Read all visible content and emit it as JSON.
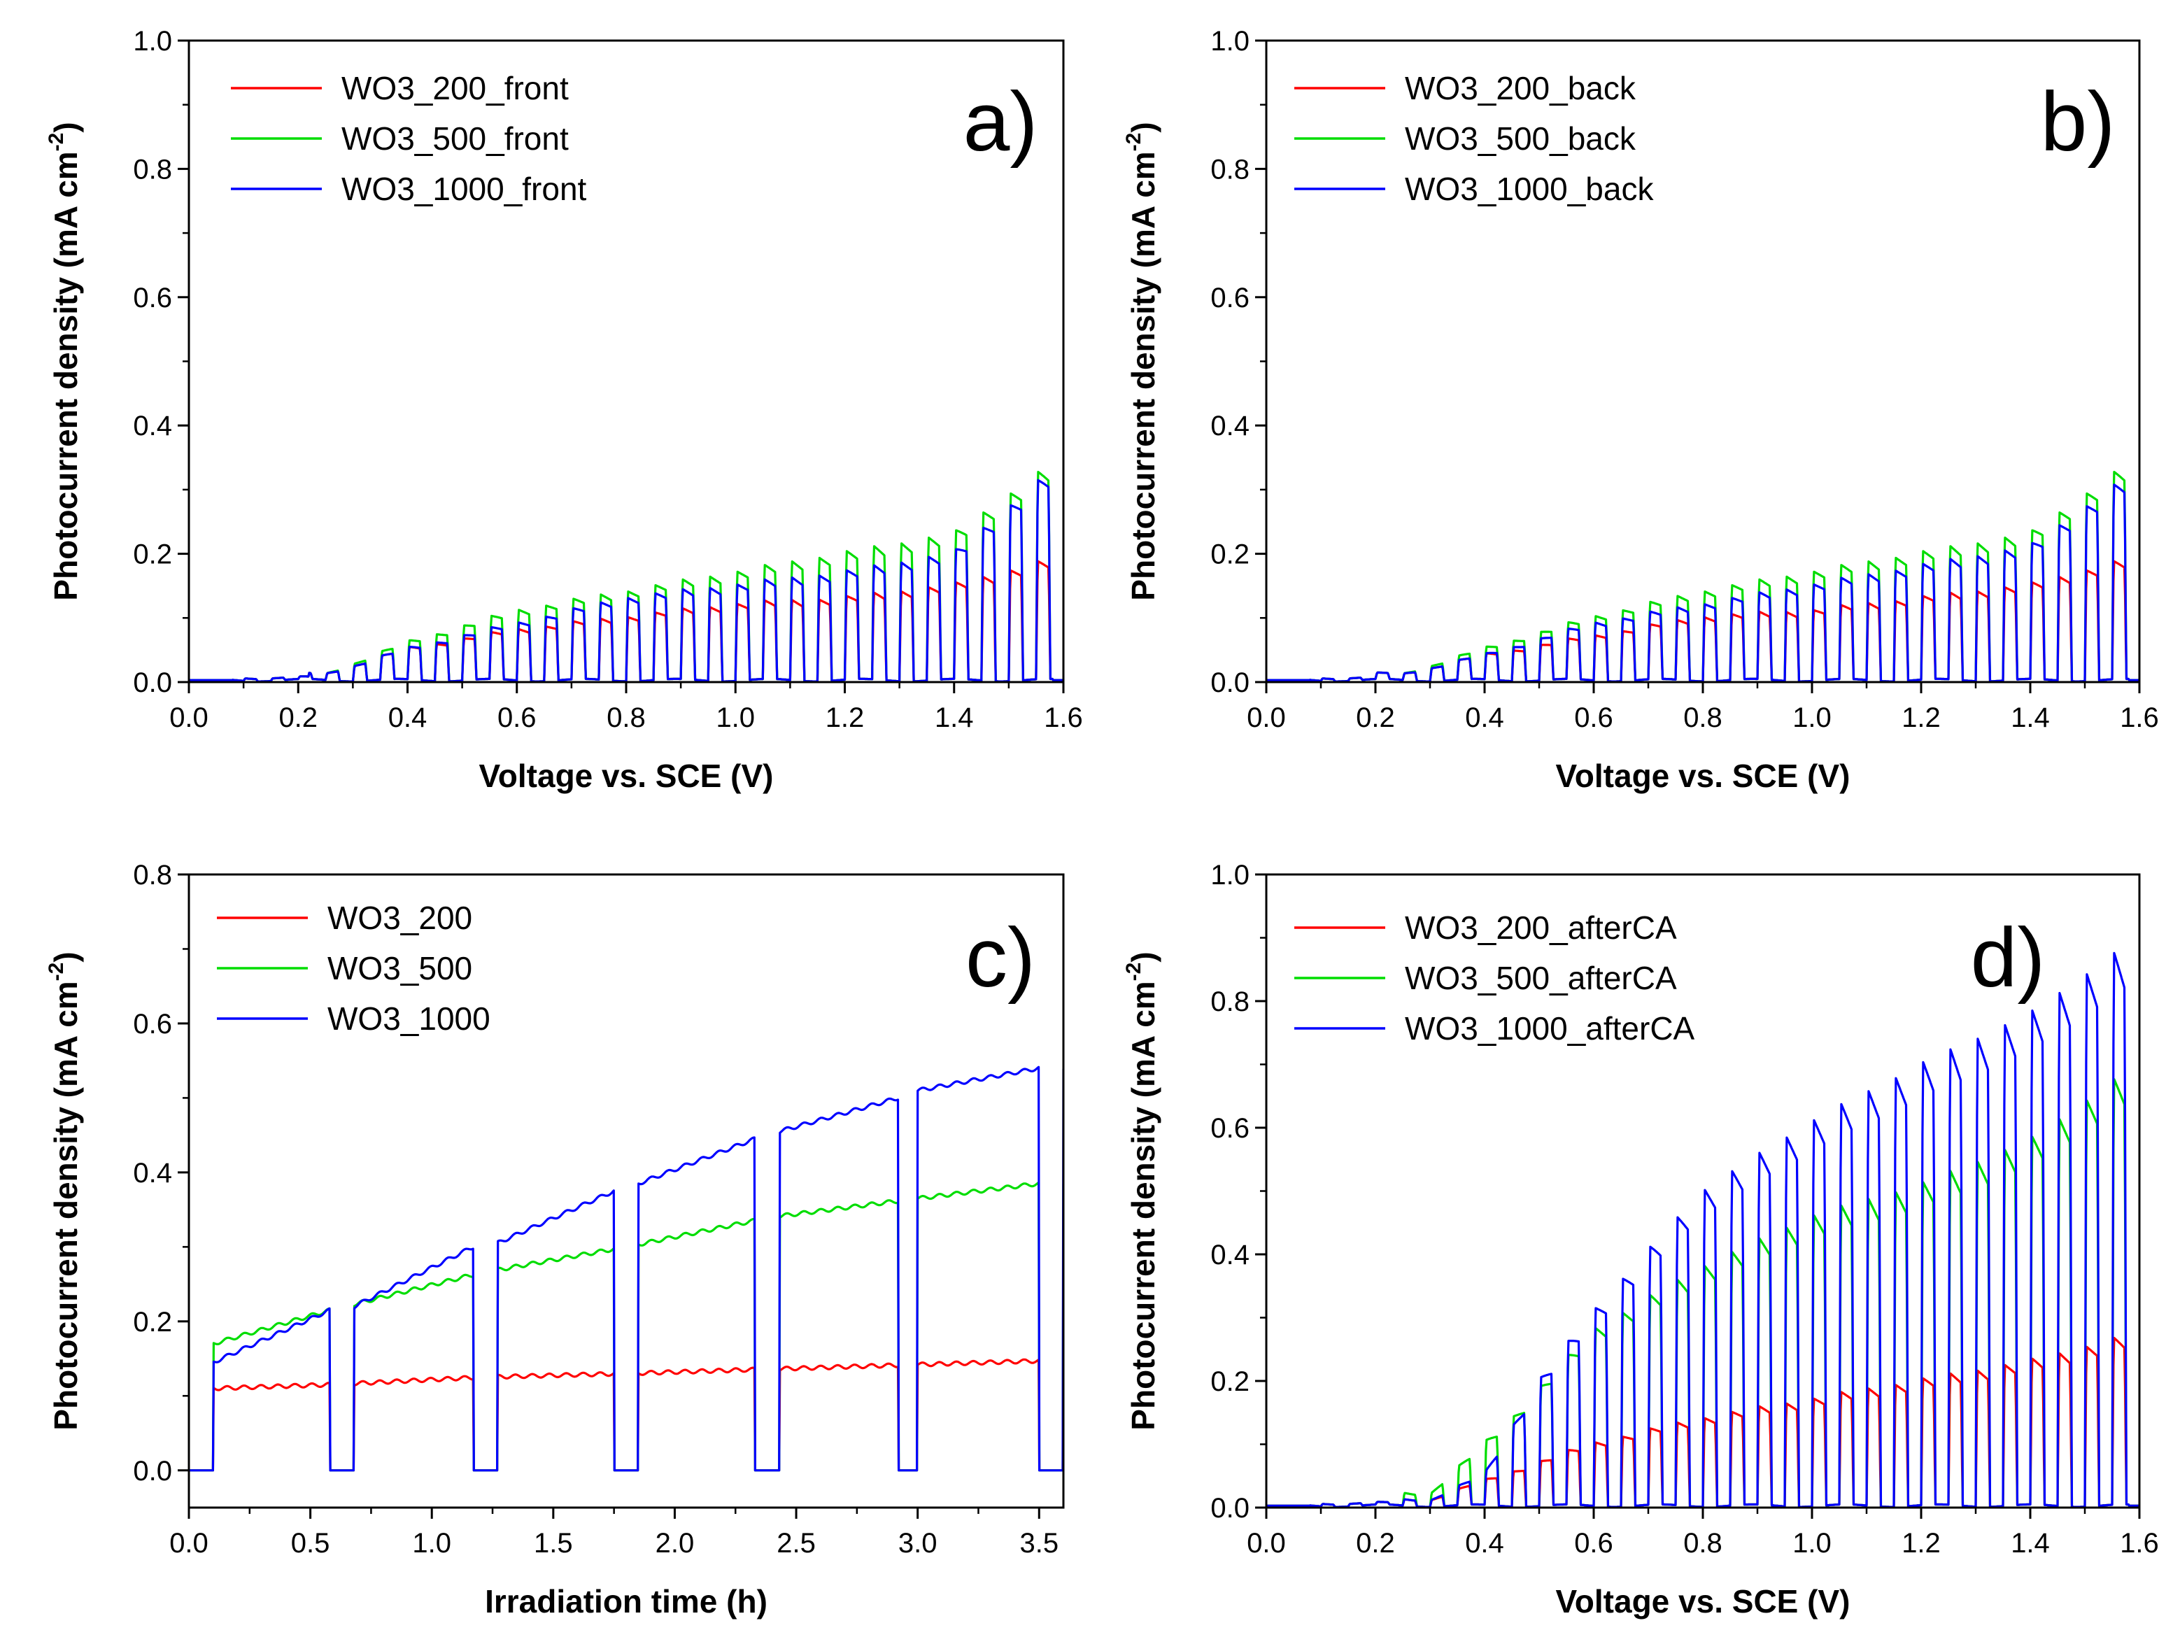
{
  "figure": {
    "colors": {
      "red": "#ff0000",
      "green": "#00dd00",
      "blue": "#0000ff",
      "axis": "#000000"
    }
  },
  "chart_data": [
    {
      "id": "a",
      "type": "line",
      "panel_label": "a)",
      "xlabel": "Voltage vs. SCE (V)",
      "ylabel": "Photocurrent density (mA cm",
      "ylabel_sup": "-2",
      "ylabel_close": ")",
      "xlim": [
        0,
        1.6
      ],
      "ylim": [
        0,
        1.0
      ],
      "xticks": [
        0.0,
        0.2,
        0.4,
        0.6,
        0.8,
        1.0,
        1.2,
        1.4,
        1.6
      ],
      "yticks": [
        0.0,
        0.2,
        0.4,
        0.6,
        0.8,
        1.0
      ],
      "xtick_labels": [
        "0.0",
        "0.2",
        "0.4",
        "0.6",
        "0.8",
        "1.0",
        "1.2",
        "1.4",
        "1.6"
      ],
      "ytick_labels": [
        "0.0",
        "0.2",
        "0.4",
        "0.6",
        "0.8",
        "1.0"
      ],
      "legend": "top-left",
      "grid": false,
      "chopped": {
        "x_start": 0.0,
        "x_end": 1.6,
        "period": 0.05,
        "light_start": 0.08,
        "light_end": 1.58
      },
      "series": [
        {
          "name": "WO3_200_front",
          "color": "#ff0000",
          "onset": 0.22,
          "envelope": [
            [
              0.25,
              0.01
            ],
            [
              0.4,
              0.05
            ],
            [
              0.6,
              0.08
            ],
            [
              0.8,
              0.1
            ],
            [
              1.0,
              0.12
            ],
            [
              1.2,
              0.13
            ],
            [
              1.4,
              0.15
            ],
            [
              1.58,
              0.19
            ]
          ]
        },
        {
          "name": "WO3_500_front",
          "color": "#00dd00",
          "onset": 0.22,
          "envelope": [
            [
              0.25,
              0.01
            ],
            [
              0.4,
              0.06
            ],
            [
              0.6,
              0.11
            ],
            [
              0.8,
              0.14
            ],
            [
              1.0,
              0.17
            ],
            [
              1.2,
              0.2
            ],
            [
              1.4,
              0.23
            ],
            [
              1.58,
              0.34
            ]
          ]
        },
        {
          "name": "WO3_1000_front",
          "color": "#0000ff",
          "onset": 0.22,
          "envelope": [
            [
              0.25,
              0.01
            ],
            [
              0.4,
              0.05
            ],
            [
              0.6,
              0.09
            ],
            [
              0.8,
              0.13
            ],
            [
              1.0,
              0.15
            ],
            [
              1.2,
              0.17
            ],
            [
              1.4,
              0.2
            ],
            [
              1.58,
              0.33
            ]
          ]
        }
      ]
    },
    {
      "id": "b",
      "type": "line",
      "panel_label": "b)",
      "xlabel": "Voltage vs. SCE (V)",
      "ylabel": "Photocurrent density (mA cm",
      "ylabel_sup": "-2",
      "ylabel_close": ")",
      "xlim": [
        0,
        1.6
      ],
      "ylim": [
        0,
        1.0
      ],
      "xticks": [
        0.0,
        0.2,
        0.4,
        0.6,
        0.8,
        1.0,
        1.2,
        1.4,
        1.6
      ],
      "yticks": [
        0.0,
        0.2,
        0.4,
        0.6,
        0.8,
        1.0
      ],
      "xtick_labels": [
        "0.0",
        "0.2",
        "0.4",
        "0.6",
        "0.8",
        "1.0",
        "1.2",
        "1.4",
        "1.6"
      ],
      "ytick_labels": [
        "0.0",
        "0.2",
        "0.4",
        "0.6",
        "0.8",
        "1.0"
      ],
      "legend": "top-left",
      "grid": false,
      "chopped": {
        "x_start": 0.0,
        "x_end": 1.6,
        "period": 0.05,
        "light_start": 0.08,
        "light_end": 1.58
      },
      "series": [
        {
          "name": "WO3_200_back",
          "color": "#ff0000",
          "onset": 0.2,
          "envelope": [
            [
              0.25,
              0.01
            ],
            [
              0.4,
              0.04
            ],
            [
              0.6,
              0.07
            ],
            [
              0.8,
              0.1
            ],
            [
              1.0,
              0.11
            ],
            [
              1.2,
              0.13
            ],
            [
              1.4,
              0.15
            ],
            [
              1.58,
              0.19
            ]
          ]
        },
        {
          "name": "WO3_500_back",
          "color": "#00dd00",
          "onset": 0.2,
          "envelope": [
            [
              0.25,
              0.01
            ],
            [
              0.4,
              0.05
            ],
            [
              0.6,
              0.1
            ],
            [
              0.8,
              0.14
            ],
            [
              1.0,
              0.17
            ],
            [
              1.2,
              0.2
            ],
            [
              1.4,
              0.23
            ],
            [
              1.58,
              0.34
            ]
          ]
        },
        {
          "name": "WO3_1000_back",
          "color": "#0000ff",
          "onset": 0.2,
          "envelope": [
            [
              0.25,
              0.01
            ],
            [
              0.4,
              0.04
            ],
            [
              0.6,
              0.09
            ],
            [
              0.8,
              0.12
            ],
            [
              1.0,
              0.15
            ],
            [
              1.2,
              0.18
            ],
            [
              1.4,
              0.21
            ],
            [
              1.58,
              0.32
            ]
          ]
        }
      ]
    },
    {
      "id": "c",
      "type": "line",
      "panel_label": "c)",
      "xlabel": "Irradiation time (h)",
      "ylabel": "Photocurrent density (mA cm",
      "ylabel_sup": "-2",
      "ylabel_close": ")",
      "xlim": [
        0,
        3.6
      ],
      "ylim": [
        -0.05,
        0.8
      ],
      "xticks": [
        0.0,
        0.5,
        1.0,
        1.5,
        2.0,
        2.5,
        3.0,
        3.5
      ],
      "yticks": [
        0.0,
        0.2,
        0.4,
        0.6,
        0.8
      ],
      "xtick_labels": [
        "0.0",
        "0.5",
        "1.0",
        "1.5",
        "2.0",
        "2.5",
        "3.0",
        "3.5"
      ],
      "ytick_labels": [
        "0.0",
        "0.2",
        "0.4",
        "0.6",
        "0.8"
      ],
      "legend": "top-left",
      "grid": false,
      "dark_intervals": [
        [
          0.0,
          0.1
        ],
        [
          0.58,
          0.68
        ],
        [
          1.17,
          1.27
        ],
        [
          1.75,
          1.85
        ],
        [
          2.33,
          2.43
        ],
        [
          2.92,
          3.0
        ],
        [
          3.5,
          3.6
        ]
      ],
      "series": [
        {
          "name": "WO3_200",
          "color": "#ff0000",
          "envelope": [
            [
              0.1,
              0.11
            ],
            [
              0.58,
              0.115
            ],
            [
              1.2,
              0.125
            ],
            [
              1.8,
              0.13
            ],
            [
              2.4,
              0.136
            ],
            [
              3.0,
              0.142
            ],
            [
              3.5,
              0.147
            ]
          ]
        },
        {
          "name": "WO3_500",
          "color": "#00dd00",
          "envelope": [
            [
              0.1,
              0.17
            ],
            [
              0.58,
              0.215
            ],
            [
              1.2,
              0.265
            ],
            [
              1.8,
              0.3
            ],
            [
              2.4,
              0.34
            ],
            [
              3.0,
              0.365
            ],
            [
              3.5,
              0.385
            ]
          ]
        },
        {
          "name": "WO3_1000",
          "color": "#0000ff",
          "envelope": [
            [
              0.1,
              0.145
            ],
            [
              0.58,
              0.215
            ],
            [
              0.68,
              0.22
            ],
            [
              1.17,
              0.3
            ],
            [
              1.27,
              0.305
            ],
            [
              1.75,
              0.375
            ],
            [
              1.85,
              0.385
            ],
            [
              2.33,
              0.445
            ],
            [
              2.43,
              0.455
            ],
            [
              2.92,
              0.5
            ],
            [
              3.0,
              0.51
            ],
            [
              3.5,
              0.54
            ]
          ]
        }
      ]
    },
    {
      "id": "d",
      "type": "line",
      "panel_label": "d)",
      "xlabel": "Voltage vs. SCE (V)",
      "ylabel": "Photocurrent density (mA cm",
      "ylabel_sup": "-2",
      "ylabel_close": ")",
      "xlim": [
        0,
        1.6
      ],
      "ylim": [
        0,
        1.0
      ],
      "xticks": [
        0.0,
        0.2,
        0.4,
        0.6,
        0.8,
        1.0,
        1.2,
        1.4,
        1.6
      ],
      "yticks": [
        0.0,
        0.2,
        0.4,
        0.6,
        0.8,
        1.0
      ],
      "xtick_labels": [
        "0.0",
        "0.2",
        "0.4",
        "0.6",
        "0.8",
        "1.0",
        "1.2",
        "1.4",
        "1.6"
      ],
      "ytick_labels": [
        "0.0",
        "0.2",
        "0.4",
        "0.6",
        "0.8",
        "1.0"
      ],
      "legend": "top-left",
      "grid": false,
      "chopped": {
        "x_start": 0.0,
        "x_end": 1.6,
        "period": 0.05,
        "light_start": 0.08,
        "light_end": 1.58
      },
      "series": [
        {
          "name": "WO3_200_afterCA",
          "color": "#ff0000",
          "onset": 0.25,
          "envelope": [
            [
              0.3,
              0.01
            ],
            [
              0.4,
              0.04
            ],
            [
              0.6,
              0.1
            ],
            [
              0.8,
              0.14
            ],
            [
              1.0,
              0.17
            ],
            [
              1.2,
              0.2
            ],
            [
              1.4,
              0.23
            ],
            [
              1.58,
              0.27
            ]
          ]
        },
        {
          "name": "WO3_500_afterCA",
          "color": "#00dd00",
          "onset": 0.25,
          "envelope": [
            [
              0.3,
              0.02
            ],
            [
              0.45,
              0.14
            ],
            [
              0.6,
              0.28
            ],
            [
              0.8,
              0.38
            ],
            [
              1.0,
              0.46
            ],
            [
              1.2,
              0.51
            ],
            [
              1.4,
              0.58
            ],
            [
              1.58,
              0.69
            ]
          ]
        },
        {
          "name": "WO3_1000_afterCA",
          "color": "#0000ff",
          "onset": 0.25,
          "envelope": [
            [
              0.3,
              0.01
            ],
            [
              0.4,
              0.05
            ],
            [
              0.5,
              0.2
            ],
            [
              0.6,
              0.31
            ],
            [
              0.8,
              0.5
            ],
            [
              1.0,
              0.61
            ],
            [
              1.2,
              0.7
            ],
            [
              1.4,
              0.78
            ],
            [
              1.58,
              0.89
            ]
          ]
        }
      ]
    }
  ]
}
